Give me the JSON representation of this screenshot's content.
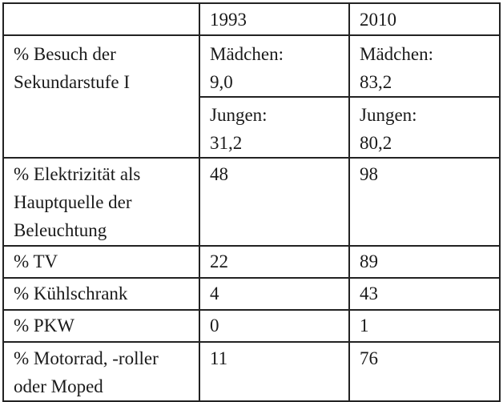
{
  "table": {
    "header": {
      "label": "",
      "year_1": "1993",
      "year_2": "2010"
    },
    "rows": [
      {
        "label": "% Besuch der\nSekundarstufe I",
        "subrows": [
          {
            "v1993": "Mädchen:\n9,0",
            "v2010": "Mädchen:\n83,2"
          },
          {
            "v1993": "Jungen:\n31,2",
            "v2010": "Jungen:\n80,2"
          }
        ]
      },
      {
        "label": "% Elektrizität als\nHauptquelle der\nBeleuchtung",
        "v1993": "48",
        "v2010": "98"
      },
      {
        "label": "% TV",
        "v1993": "22",
        "v2010": "89"
      },
      {
        "label": "% Kühlschrank",
        "v1993": "4",
        "v2010": "43"
      },
      {
        "label": "% PKW",
        "v1993": "0",
        "v2010": "1"
      },
      {
        "label": "% Motorrad, -roller\noder Moped",
        "v1993": "11",
        "v2010": "76"
      }
    ]
  }
}
